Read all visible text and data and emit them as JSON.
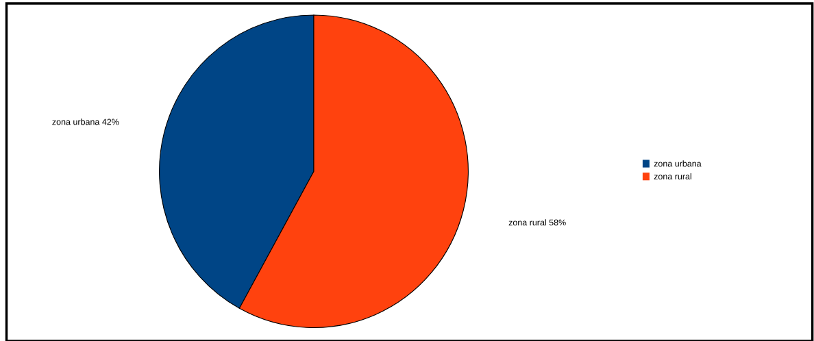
{
  "chart_data": {
    "type": "pie",
    "categories": [
      "zona urbana",
      "zona rural"
    ],
    "values": [
      42,
      58
    ],
    "colors": [
      "#004586",
      "#ff420e"
    ],
    "value_labels": [
      "42%",
      "58%"
    ],
    "legend": "right"
  }
}
